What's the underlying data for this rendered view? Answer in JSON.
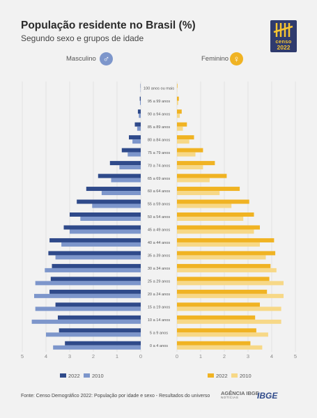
{
  "header": {
    "title": "População residente no Brasil (%)",
    "subtitle": "Segundo sexo e grupos de idade"
  },
  "logo": {
    "line1": "censo",
    "line2": "2022"
  },
  "labels": {
    "male": "Masculino",
    "female": "Feminino"
  },
  "icons": {
    "male": "male-symbol-icon",
    "female": "female-symbol-icon"
  },
  "colors": {
    "male2022": "#2f4a8a",
    "male2010": "#7d96cb",
    "female2022": "#f0b323",
    "female2010": "#f7d887",
    "male_icon": "#7d96cb",
    "female_icon": "#f0b323"
  },
  "footer": {
    "source": "Fonte: Censo Demográfico 2022: População por idade e sexo - Resultados do universo",
    "agencia": "AGÊNCIA IBGE",
    "agencia_sub": "NOTÍCIAS",
    "ibge": "IBGE"
  },
  "chart_data": {
    "type": "bar",
    "orientation": "horizontal-population-pyramid",
    "categories": [
      "100 anos ou mais",
      "95 a 99 anos",
      "90 a 94 anos",
      "85 a 89 anos",
      "80 a 84 anos",
      "75 a 79 anos",
      "70 a 74 anos",
      "65 a 69 anos",
      "60 a 64 anos",
      "55 a 59 anos",
      "50 a 54 anos",
      "45 a 49 anos",
      "40 a 44 anos",
      "35 a 39 anos",
      "30 a 34 anos",
      "25 a 29 anos",
      "20 a 24 anos",
      "15 a 19 anos",
      "10 a 14 anos",
      "5 a 9 anos",
      "0 a 4 anos"
    ],
    "series": [
      {
        "name": "2022",
        "side": "male",
        "values": [
          0.01,
          0.04,
          0.12,
          0.25,
          0.5,
          0.8,
          1.3,
          1.8,
          2.3,
          2.7,
          3.0,
          3.25,
          3.85,
          3.9,
          3.75,
          3.8,
          3.85,
          3.6,
          3.5,
          3.45,
          3.2
        ]
      },
      {
        "name": "2010",
        "side": "male",
        "values": [
          0.01,
          0.03,
          0.08,
          0.15,
          0.35,
          0.55,
          0.9,
          1.25,
          1.65,
          2.05,
          2.55,
          3.0,
          3.35,
          3.6,
          4.05,
          4.45,
          4.5,
          4.45,
          4.6,
          4.0,
          3.7
        ]
      },
      {
        "name": "2022",
        "side": "female",
        "values": [
          0.02,
          0.08,
          0.2,
          0.42,
          0.72,
          1.1,
          1.6,
          2.1,
          2.65,
          3.05,
          3.25,
          3.5,
          4.1,
          4.15,
          3.95,
          3.9,
          3.8,
          3.5,
          3.3,
          3.35,
          3.1
        ]
      },
      {
        "name": "2010",
        "side": "female",
        "values": [
          0.01,
          0.05,
          0.12,
          0.25,
          0.52,
          0.78,
          1.1,
          1.38,
          1.8,
          2.3,
          2.8,
          3.25,
          3.5,
          3.75,
          4.2,
          4.5,
          4.5,
          4.4,
          4.4,
          3.85,
          3.6
        ]
      }
    ],
    "x_ticks_male": [
      "5",
      "4",
      "3",
      "2",
      "1",
      "0"
    ],
    "x_ticks_female": [
      "0",
      "1",
      "2",
      "3",
      "4",
      "5"
    ],
    "xlim": [
      0,
      5
    ],
    "grid": true,
    "legend": [
      {
        "label": "2022",
        "color": "#2f4a8a"
      },
      {
        "label": "2010",
        "color": "#7d96cb"
      },
      {
        "label": "2022",
        "color": "#f0b323"
      },
      {
        "label": "2010",
        "color": "#f7d887"
      }
    ]
  }
}
